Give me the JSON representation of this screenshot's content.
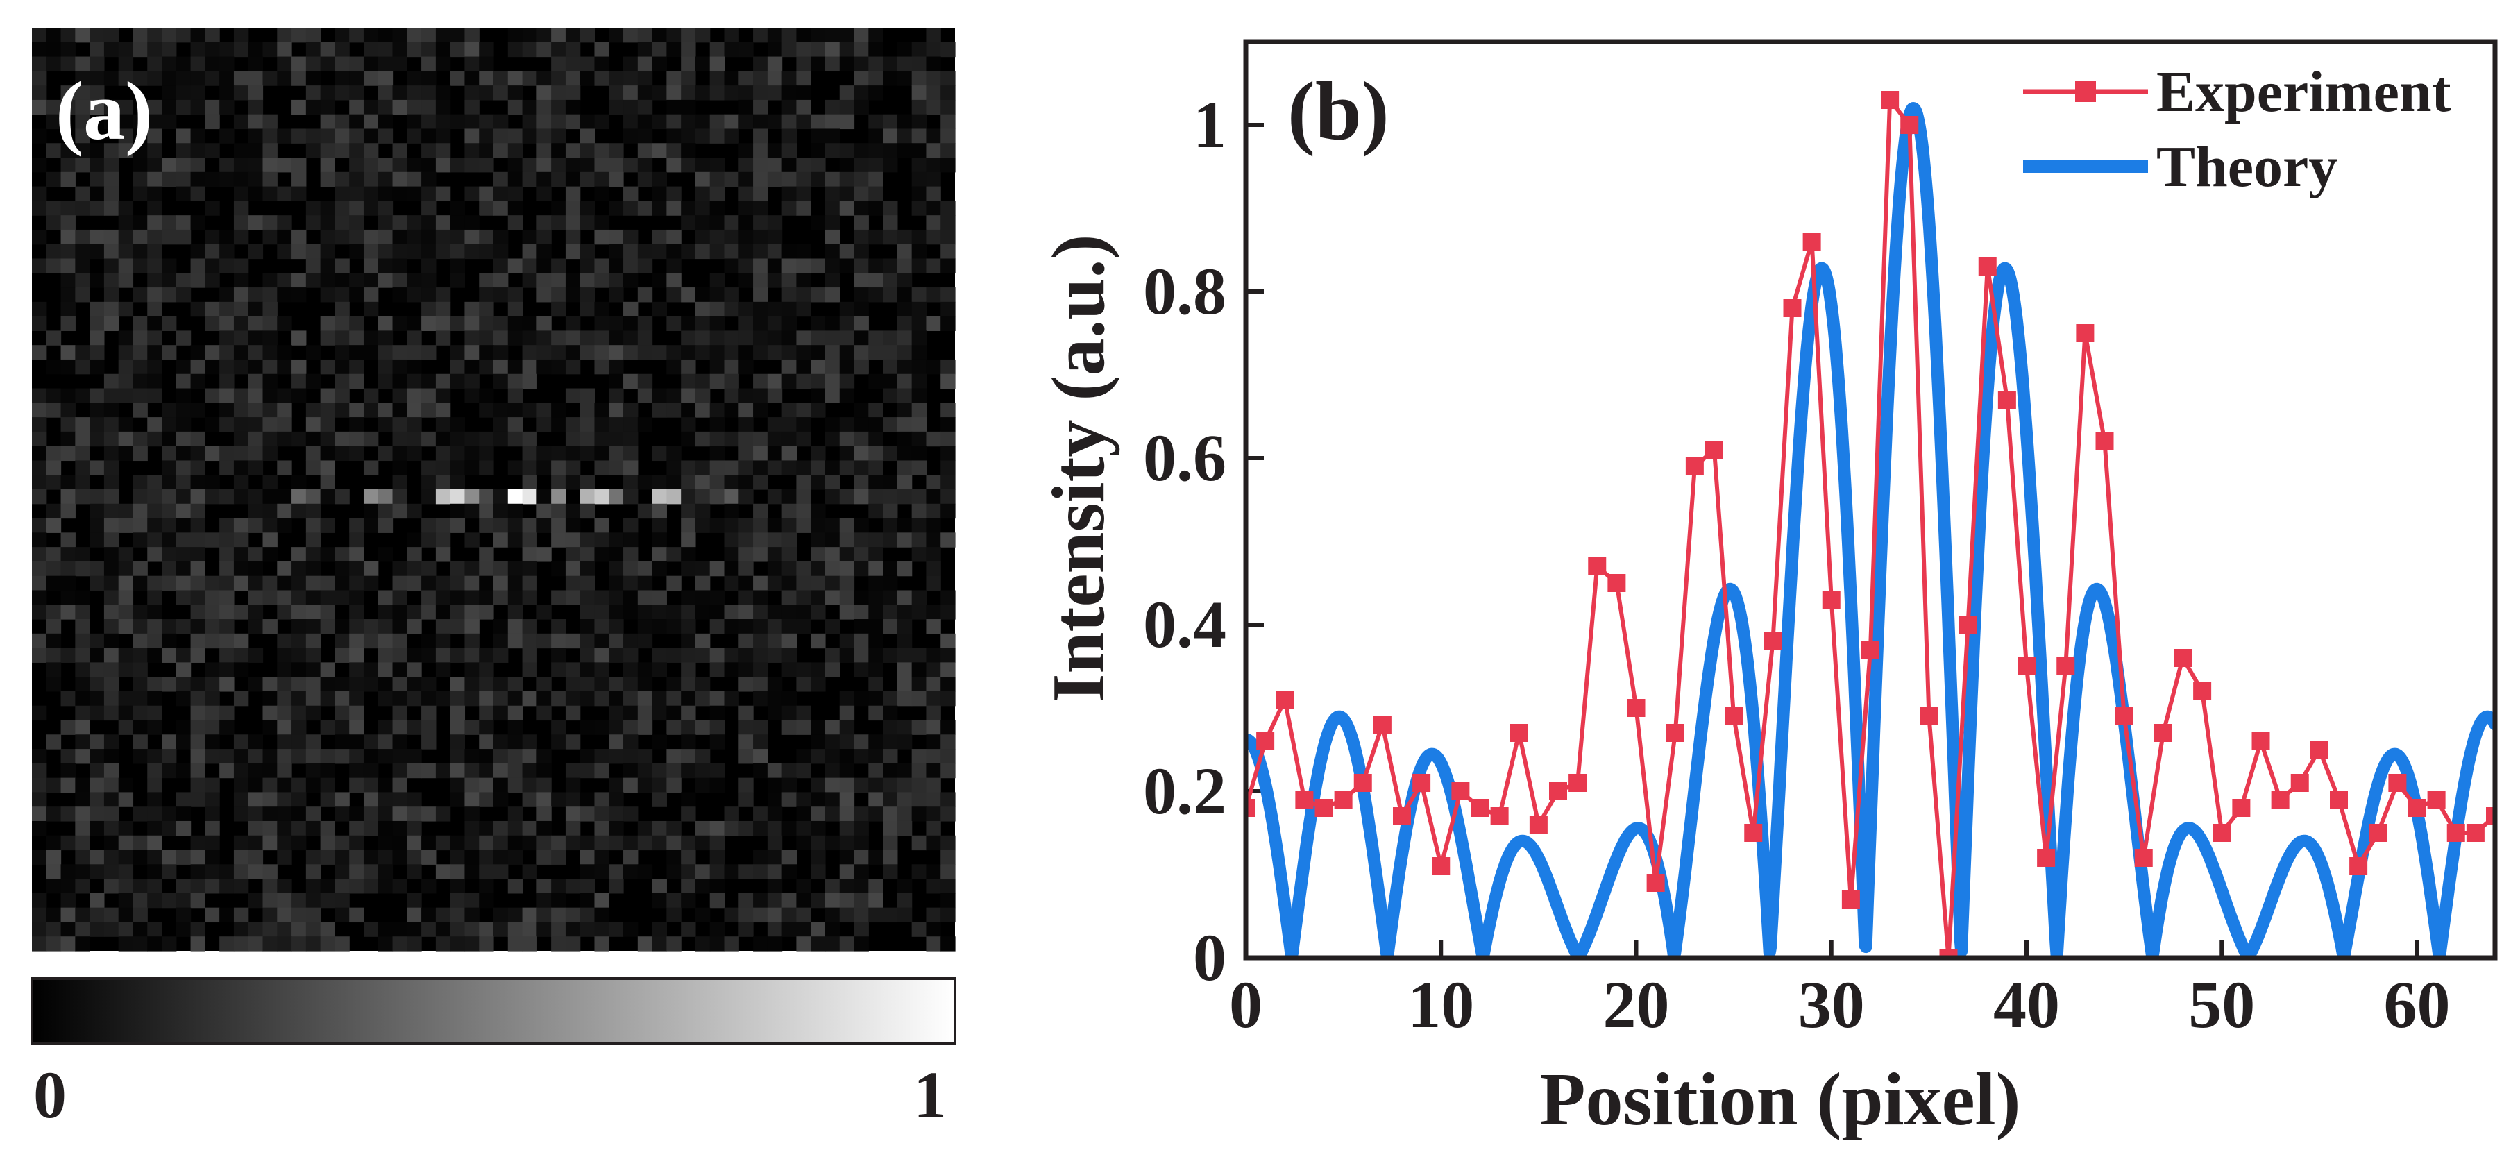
{
  "panel_a": {
    "label": "(a)",
    "colorbar": {
      "min_label": "0",
      "max_label": "1",
      "colormap": "gray"
    },
    "image": {
      "grid_size": 64,
      "background_max": 0.28,
      "bright_row": 32,
      "bright_spots": [
        {
          "col": 18,
          "value": 0.4
        },
        {
          "col": 19,
          "value": 0.3
        },
        {
          "col": 23,
          "value": 0.55
        },
        {
          "col": 24,
          "value": 0.45
        },
        {
          "col": 28,
          "value": 0.75
        },
        {
          "col": 29,
          "value": 0.85
        },
        {
          "col": 30,
          "value": 0.55
        },
        {
          "col": 33,
          "value": 1.0
        },
        {
          "col": 34,
          "value": 0.9
        },
        {
          "col": 36,
          "value": 0.55
        },
        {
          "col": 38,
          "value": 0.7
        },
        {
          "col": 39,
          "value": 0.8
        },
        {
          "col": 40,
          "value": 0.45
        },
        {
          "col": 43,
          "value": 0.75
        },
        {
          "col": 44,
          "value": 0.7
        },
        {
          "col": 48,
          "value": 0.35
        }
      ]
    }
  },
  "panel_b": {
    "label": "(b)"
  },
  "chart_data": {
    "type": "line",
    "xlabel": "Position (pixel)",
    "ylabel": "Intensity (a.u.)",
    "xlim": [
      0,
      64
    ],
    "ylim": [
      0,
      1.1
    ],
    "xticks": [
      0,
      10,
      20,
      30,
      40,
      50,
      60
    ],
    "xtick_labels": [
      "0",
      "10",
      "20",
      "30",
      "40",
      "50",
      "60"
    ],
    "yticks": [
      0,
      0.2,
      0.4,
      0.6,
      0.8,
      1.0
    ],
    "ytick_labels": [
      "0",
      "0.2",
      "0.4",
      "0.6",
      "0.8",
      "1"
    ],
    "legend_position": "top-right",
    "series": [
      {
        "name": "Experiment",
        "color": "#e8394f",
        "marker": "square",
        "x": [
          0,
          1,
          2,
          3,
          4,
          5,
          6,
          7,
          8,
          9,
          10,
          11,
          12,
          13,
          14,
          15,
          16,
          17,
          18,
          19,
          20,
          21,
          22,
          23,
          24,
          25,
          26,
          27,
          28,
          29,
          30,
          31,
          32,
          33,
          34,
          35,
          36,
          37,
          38,
          39,
          40,
          41,
          42,
          43,
          44,
          45,
          46,
          47,
          48,
          49,
          50,
          51,
          52,
          53,
          54,
          55,
          56,
          57,
          58,
          59,
          60,
          61,
          62,
          63,
          64
        ],
        "y": [
          0.18,
          0.26,
          0.31,
          0.19,
          0.18,
          0.19,
          0.21,
          0.28,
          0.17,
          0.21,
          0.11,
          0.2,
          0.18,
          0.17,
          0.27,
          0.16,
          0.2,
          0.21,
          0.47,
          0.45,
          0.3,
          0.09,
          0.27,
          0.59,
          0.61,
          0.29,
          0.15,
          0.38,
          0.78,
          0.86,
          0.43,
          0.07,
          0.37,
          1.03,
          1.0,
          0.29,
          0.0,
          0.4,
          0.83,
          0.67,
          0.35,
          0.12,
          0.35,
          0.75,
          0.62,
          0.29,
          0.12,
          0.27,
          0.36,
          0.32,
          0.15,
          0.18,
          0.26,
          0.19,
          0.21,
          0.25,
          0.19,
          0.11,
          0.15,
          0.21,
          0.18,
          0.19,
          0.15,
          0.15,
          0.17
        ]
      },
      {
        "name": "Theory",
        "color": "#1c7de5",
        "marker": "none",
        "model": "abs-sinc-squared-profile",
        "center": 34.2,
        "period": 4.9,
        "envelope_zeros_every": 5,
        "max": 1.02
      }
    ]
  }
}
